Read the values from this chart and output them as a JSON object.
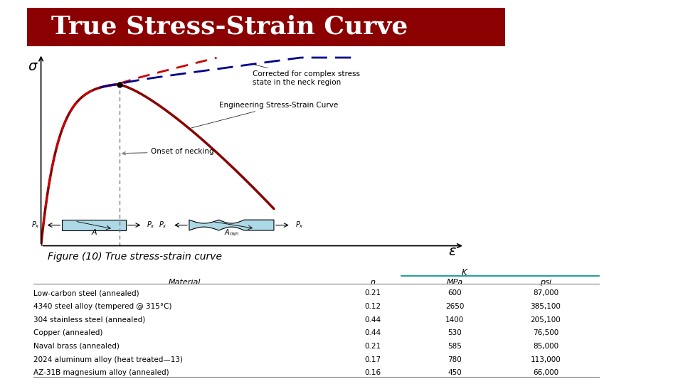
{
  "title": "True Stress-Strain Curve",
  "title_bg_color": "#8B0000",
  "title_text_color": "#FFFFFF",
  "figure_caption": "Figure (10) True stress-strain curve",
  "background_color": "#FFFFFF",
  "table_header": [
    "Material",
    "n",
    "MPa",
    "psi"
  ],
  "table_col_K": "K",
  "table_rows": [
    [
      "Low-carbon steel (annealed)",
      "0.21",
      "600",
      "87,000"
    ],
    [
      "4340 steel alloy (tempered @ 315°C)",
      "0.12",
      "2650",
      "385,100"
    ],
    [
      "304 stainless steel (annealed)",
      "0.44",
      "1400",
      "205,100"
    ],
    [
      "Copper (annealed)",
      "0.44",
      "530",
      "76,500"
    ],
    [
      "Naval brass (annealed)",
      "0.21",
      "585",
      "85,000"
    ],
    [
      "2024 aluminum alloy (heat treated—13)",
      "0.17",
      "780",
      "113,000"
    ],
    [
      "AZ-31B magnesium alloy (annealed)",
      "0.16",
      "450",
      "66,000"
    ]
  ],
  "curve_color": "#8B0000",
  "dashed_red_color": "#CC0000",
  "dashed_blue_color": "#00008B",
  "annotations": {
    "true_ss": "True Stress-Strain Curve",
    "corrected": "Corrected for complex stress\nstate in the neck region",
    "engineering": "Engineering Stress-Strain Curve",
    "onset": "Onset of necking"
  },
  "sigma_label": "σ",
  "epsilon_label": "ε"
}
